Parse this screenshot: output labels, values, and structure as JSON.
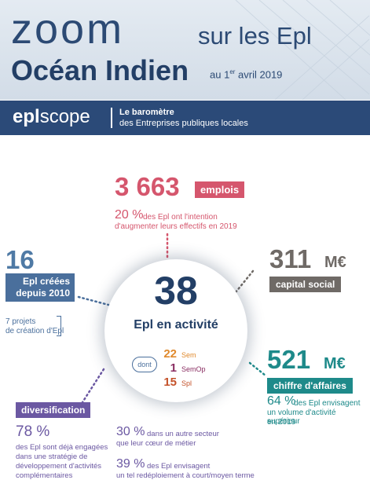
{
  "header": {
    "zoom": "zoom",
    "sur_les": "sur les Epl",
    "region": "Océan Indien",
    "date_prefix": "au 1",
    "date_sup": "er",
    "date_suffix": " avril 2019"
  },
  "banner": {
    "logo_bold": "epl",
    "logo_light": "scope",
    "line1": "Le baromètre",
    "line2": "des Entreprises publiques locales"
  },
  "emplois": {
    "value": "3 663",
    "label": "emplois",
    "pct": "20 %",
    "text1": "des Epl ont l'intention",
    "text2": "d'augmenter leurs effectifs en 2019"
  },
  "creees": {
    "value": "16",
    "label1": "Epl créées",
    "label2": "depuis 2010",
    "projets1": "7 projets",
    "projets2": "de création d'Epl"
  },
  "capital": {
    "value": "311",
    "unit": "M€",
    "label": "capital social"
  },
  "center": {
    "value": "38",
    "label": "Epl en activité",
    "dont": "dont",
    "items": [
      {
        "n": "22",
        "label": "Sem",
        "color": "#e08a2e"
      },
      {
        "n": "1",
        "label": "SemOp",
        "color": "#8a2f63"
      },
      {
        "n": "15",
        "label": "Spl",
        "color": "#c4522a"
      }
    ]
  },
  "ca": {
    "value": "521",
    "unit": "M€",
    "label": "chiffre d'affaires",
    "pct": "64 %",
    "text1": "des Epl envisagent",
    "text2": "un volume d'activité supérieur",
    "text3": "en 2019"
  },
  "diversification": {
    "label": "diversification",
    "pct78": "78 %",
    "t78_1": "des Epl sont déjà engagées",
    "t78_2": "dans une stratégie de",
    "t78_3": "développement d'activités",
    "t78_4": "complémentaires",
    "pct30": "30 %",
    "t30_1": "dans un autre secteur",
    "t30_2": "que leur cœur de métier",
    "pct39": "39 %",
    "t39_1": "des Epl envisagent",
    "t39_2": "un tel redéploiement à court/moyen terme"
  },
  "colors": {
    "navy": "#2b4a78",
    "pink": "#d5566d",
    "blue": "#4a6f9c",
    "grey": "#6f6a66",
    "teal": "#1e8a8a",
    "purple": "#6b58a2"
  }
}
